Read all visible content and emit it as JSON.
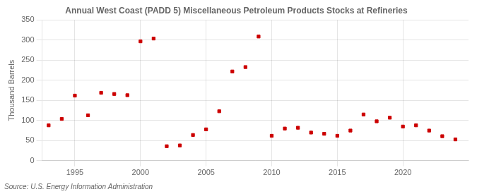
{
  "chart_data": {
    "type": "scatter",
    "title": "Annual West Coast (PADD 5) Miscellaneous Petroleum Products Stocks at Refineries",
    "y_label": "Thousand Barrels",
    "source": "Source: U.S. Energy Information Administration",
    "x": [
      1993,
      1994,
      1995,
      1996,
      1997,
      1998,
      1999,
      2000,
      2001,
      2002,
      2003,
      2004,
      2005,
      2006,
      2007,
      2008,
      2009,
      2010,
      2011,
      2012,
      2013,
      2014,
      2015,
      2016,
      2017,
      2018,
      2019,
      2020,
      2021,
      2022,
      2023,
      2024
    ],
    "values": [
      88,
      104,
      162,
      113,
      169,
      166,
      163,
      297,
      304,
      36,
      38,
      64,
      78,
      123,
      222,
      233,
      309,
      62,
      80,
      82,
      70,
      67,
      62,
      75,
      115,
      98,
      107,
      85,
      88,
      75,
      61,
      53
    ],
    "color": "#cc0000",
    "marker": "square",
    "xlim": [
      1992.5,
      2025
    ],
    "xticks": [
      1995,
      2000,
      2005,
      2010,
      2015,
      2020
    ],
    "ylim": [
      0,
      350
    ],
    "yticks": [
      0,
      50,
      100,
      150,
      200,
      250,
      300,
      350
    ],
    "grid": true
  }
}
